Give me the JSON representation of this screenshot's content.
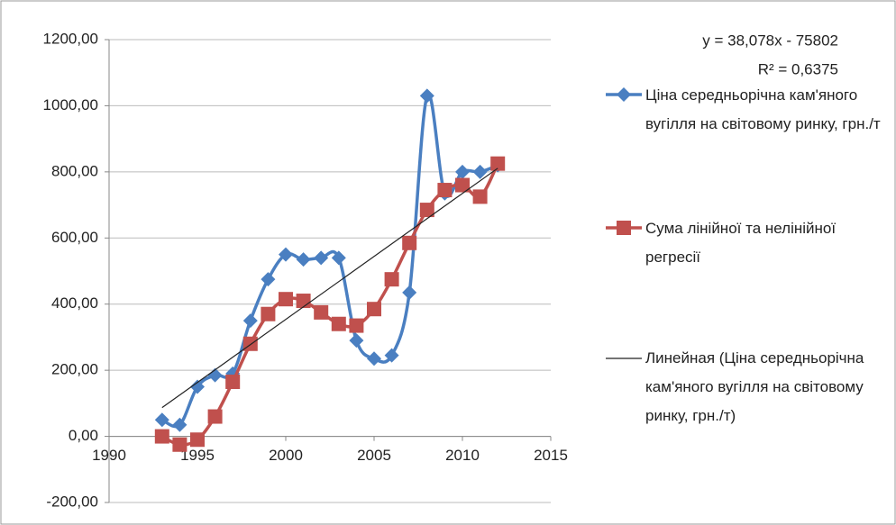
{
  "chart_data": {
    "type": "line",
    "x": [
      1993,
      1994,
      1995,
      1996,
      1997,
      1998,
      1999,
      2000,
      2001,
      2002,
      2003,
      2004,
      2005,
      2006,
      2007,
      2008,
      2009,
      2010,
      2011,
      2012
    ],
    "series": [
      {
        "name": "Ціна середньорічна кам'яного вугілля на світовому ринку, грн./т",
        "color": "#4a7fc1",
        "marker": "diamond",
        "smooth": true,
        "values": [
          50,
          35,
          150,
          185,
          190,
          350,
          475,
          550,
          535,
          540,
          540,
          290,
          235,
          245,
          435,
          1030,
          735,
          800,
          800,
          820
        ]
      },
      {
        "name": "Сума лінійної та нелінійної регресії",
        "color": "#c0504d",
        "marker": "square",
        "smooth": true,
        "values": [
          0,
          -25,
          -10,
          60,
          165,
          280,
          370,
          415,
          410,
          375,
          340,
          335,
          385,
          475,
          585,
          685,
          745,
          760,
          725,
          825
        ]
      },
      {
        "name": "Линейная (Ціна середньорічна кам'яного вугілля на світовому ринку, грн./т)",
        "color": "#222222",
        "marker": "none",
        "smooth": false,
        "x": [
          1993,
          2012
        ],
        "values": [
          87,
          811
        ]
      }
    ],
    "annotations": [
      "y = 38,078x - 75802",
      "R² = 0,6375"
    ],
    "xlim": [
      1990,
      2015
    ],
    "xticks": [
      1990,
      1995,
      2000,
      2005,
      2010,
      2015
    ],
    "ylim": [
      -200,
      1200
    ],
    "yticks": [
      {
        "value": -200,
        "label": "-200,00"
      },
      {
        "value": 0,
        "label": "0,00"
      },
      {
        "value": 200,
        "label": "200,00"
      },
      {
        "value": 400,
        "label": "400,00"
      },
      {
        "value": 600,
        "label": "600,00"
      },
      {
        "value": 800,
        "label": "800,00"
      },
      {
        "value": 1000,
        "label": "1000,00"
      },
      {
        "value": 1200,
        "label": "1200,00"
      }
    ],
    "grid": true,
    "legend": "right"
  }
}
